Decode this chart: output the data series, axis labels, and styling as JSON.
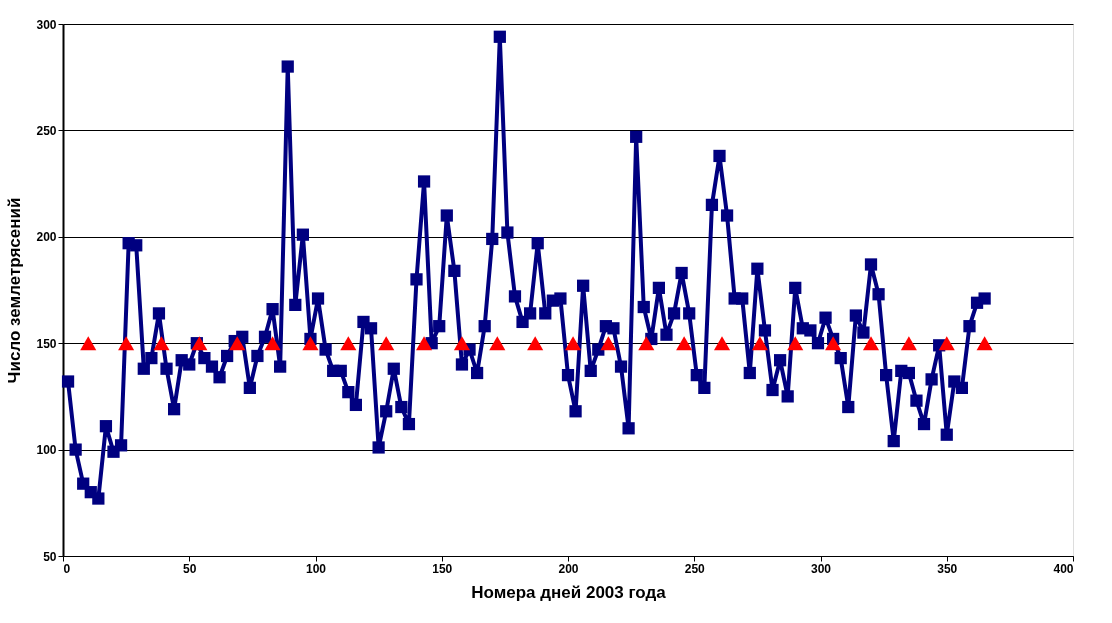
{
  "chart_data": {
    "type": "line",
    "xlabel": "Номера дней 2003 года",
    "ylabel": "Число землетрясений",
    "xlim": [
      0,
      400
    ],
    "xticks": [
      0,
      50,
      100,
      150,
      200,
      250,
      300,
      350,
      400
    ],
    "ylim": [
      50,
      300
    ],
    "yticks": [
      50,
      100,
      150,
      200,
      250,
      300
    ],
    "grid": "y",
    "series": [
      {
        "color": "#000080",
        "marker": "square",
        "line_style": "solid",
        "x": [
          2,
          5,
          8,
          11,
          14,
          17,
          20,
          23,
          26,
          29,
          32,
          35,
          38,
          41,
          44,
          47,
          50,
          53,
          56,
          59,
          62,
          65,
          68,
          71,
          74,
          77,
          80,
          83,
          86,
          89,
          92,
          95,
          98,
          101,
          104,
          107,
          110,
          113,
          116,
          119,
          122,
          125,
          128,
          131,
          134,
          137,
          140,
          143,
          146,
          149,
          152,
          155,
          158,
          161,
          164,
          167,
          170,
          173,
          176,
          179,
          182,
          185,
          188,
          191,
          194,
          197,
          200,
          203,
          206,
          209,
          212,
          215,
          218,
          221,
          224,
          227,
          230,
          233,
          236,
          239,
          242,
          245,
          248,
          251,
          254,
          257,
          260,
          263,
          266,
          269,
          272,
          275,
          278,
          281,
          284,
          287,
          290,
          293,
          296,
          299,
          302,
          305,
          308,
          311,
          314,
          317,
          320,
          323,
          326,
          329,
          332,
          335,
          338,
          341,
          344,
          347,
          350,
          353,
          356,
          359,
          362,
          365
        ],
        "values": [
          132,
          100,
          84,
          80,
          77,
          111,
          99,
          102,
          197,
          196,
          138,
          143,
          164,
          138,
          119,
          142,
          140,
          150,
          143,
          139,
          134,
          144,
          151,
          153,
          129,
          144,
          153,
          166,
          139,
          280,
          168,
          201,
          152,
          171,
          147,
          137,
          137,
          127,
          121,
          160,
          157,
          101,
          118,
          138,
          120,
          112,
          180,
          226,
          150,
          158,
          210,
          184,
          140,
          147,
          136,
          158,
          199,
          294,
          202,
          172,
          160,
          164,
          197,
          164,
          170,
          171,
          135,
          118,
          177,
          137,
          147,
          158,
          157,
          139,
          110,
          247,
          167,
          152,
          176,
          154,
          164,
          183,
          164,
          135,
          129,
          215,
          238,
          210,
          171,
          171,
          136,
          185,
          156,
          128,
          142,
          125,
          176,
          157,
          156,
          150,
          162,
          152,
          143,
          120,
          163,
          155,
          187,
          173,
          135,
          104,
          137,
          136,
          123,
          112,
          133,
          149,
          107,
          132,
          129,
          158,
          169,
          171
        ]
      },
      {
        "type": "scatter",
        "color": "#ff0000",
        "marker": "triangle",
        "x": [
          10,
          25,
          39,
          54,
          69,
          83,
          98,
          113,
          128,
          143,
          158,
          172,
          187,
          202,
          216,
          231,
          246,
          261,
          276,
          290,
          305,
          320,
          335,
          350,
          365
        ],
        "values": [
          150,
          150,
          150,
          150,
          150,
          150,
          150,
          150,
          150,
          150,
          150,
          150,
          150,
          150,
          150,
          150,
          150,
          150,
          150,
          150,
          150,
          150,
          150,
          150,
          150
        ]
      }
    ]
  }
}
